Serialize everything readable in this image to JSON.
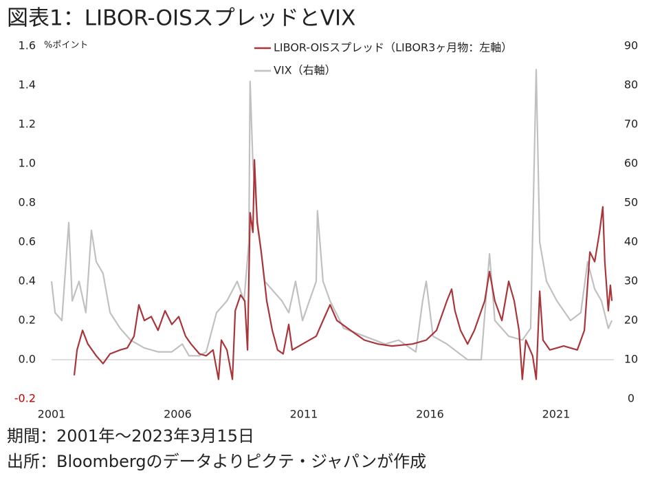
{
  "chart_data": {
    "type": "line",
    "title": "図表1：LIBOR-OISスプレッドとVIX",
    "y_label": "%ポイント",
    "notes": [
      "期間：2001年～2023年3月15日",
      "出所：Bloombergのデータよりピクテ・ジャパンが作成"
    ],
    "xlim": [
      2001,
      2023.29
    ],
    "xticks": [
      2001,
      2006,
      2011,
      2016,
      2021
    ],
    "ylim": [
      -0.2,
      1.6
    ],
    "yticks": [
      -0.2,
      {
        "value": 0,
        "label": "0.0"
      },
      0.2,
      0.4,
      0.6,
      0.8,
      {
        "value": 1,
        "label": "1.0"
      },
      1.2,
      1.4,
      1.6
    ],
    "y2lim": [
      0,
      90
    ],
    "y2ticks": [
      0,
      10,
      20,
      30,
      40,
      50,
      60,
      70,
      80,
      90
    ],
    "series": [
      {
        "name": "VIX（右軸）",
        "color": "#c0c0c0",
        "axis": "y2",
        "x": [
          2001.0,
          2001.14,
          2001.41,
          2001.68,
          2001.82,
          2002.09,
          2002.36,
          2002.58,
          2002.77,
          2003.04,
          2003.32,
          2003.72,
          2004.13,
          2004.68,
          2005.22,
          2005.77,
          2006.18,
          2006.45,
          2006.86,
          2007.13,
          2007.54,
          2007.95,
          2008.36,
          2008.63,
          2008.82,
          2008.87,
          2008.98,
          2009.17,
          2009.45,
          2009.72,
          2010.13,
          2010.4,
          2010.67,
          2010.95,
          2011.49,
          2011.54,
          2011.76,
          2012.04,
          2012.58,
          2013.4,
          2014.22,
          2014.76,
          2015.44,
          2015.71,
          2015.85,
          2016.12,
          2016.67,
          2017.08,
          2017.49,
          2018.03,
          2018.36,
          2018.57,
          2019.12,
          2019.66,
          2019.99,
          2020.21,
          2020.35,
          2020.62,
          2021.03,
          2021.57,
          2021.98,
          2022.25,
          2022.53,
          2022.8,
          2023.07,
          2023.21
        ],
        "values": [
          30,
          22,
          20,
          45,
          25,
          30,
          22,
          43,
          35,
          32,
          22,
          18,
          15,
          13,
          12,
          12,
          14,
          11,
          11,
          12,
          22,
          25,
          30,
          25,
          40,
          81,
          60,
          45,
          30,
          28,
          25,
          22,
          30,
          20,
          30,
          48,
          30,
          25,
          18,
          16,
          14,
          15,
          12,
          25,
          30,
          16,
          14,
          12,
          10,
          10,
          37,
          20,
          16,
          15,
          18,
          84,
          40,
          30,
          25,
          20,
          22,
          35,
          28,
          25,
          18,
          20
        ]
      },
      {
        "name": "LIBOR-OISスプレッド（LIBOR3ヶ月物：左軸）",
        "color": "#a8353a",
        "axis": "y",
        "x": [
          2001.9,
          2002.01,
          2002.23,
          2002.44,
          2002.77,
          2003.04,
          2003.32,
          2003.72,
          2004.0,
          2004.27,
          2004.46,
          2004.68,
          2004.95,
          2005.22,
          2005.5,
          2005.77,
          2006.04,
          2006.31,
          2006.53,
          2006.86,
          2007.13,
          2007.4,
          2007.62,
          2007.73,
          2007.95,
          2008.17,
          2008.28,
          2008.49,
          2008.66,
          2008.77,
          2008.87,
          2008.98,
          2009.04,
          2009.15,
          2009.31,
          2009.53,
          2009.75,
          2009.96,
          2010.18,
          2010.4,
          2010.54,
          2010.95,
          2011.49,
          2011.76,
          2012.04,
          2012.31,
          2012.85,
          2013.4,
          2013.94,
          2014.49,
          2015.31,
          2015.85,
          2016.26,
          2016.67,
          2016.86,
          2016.99,
          2017.21,
          2017.49,
          2017.76,
          2018.17,
          2018.36,
          2018.57,
          2018.85,
          2019.12,
          2019.34,
          2019.53,
          2019.66,
          2019.8,
          2020.07,
          2020.21,
          2020.35,
          2020.48,
          2020.75,
          2021.3,
          2021.84,
          2022.12,
          2022.34,
          2022.53,
          2022.72,
          2022.85,
          2022.93,
          2023.07,
          2023.15,
          2023.21
        ],
        "values": [
          -0.08,
          0.05,
          0.15,
          0.08,
          0.02,
          -0.02,
          0.03,
          0.05,
          0.06,
          0.12,
          0.28,
          0.2,
          0.22,
          0.15,
          0.25,
          0.18,
          0.22,
          0.12,
          0.08,
          0.03,
          0.02,
          0.05,
          -0.1,
          0.1,
          0.05,
          -0.1,
          0.25,
          0.33,
          0.3,
          0.05,
          0.75,
          0.65,
          1.02,
          0.7,
          0.55,
          0.3,
          0.15,
          0.05,
          0.03,
          0.18,
          0.05,
          0.08,
          0.12,
          0.2,
          0.28,
          0.2,
          0.15,
          0.1,
          0.08,
          0.07,
          0.08,
          0.1,
          0.15,
          0.3,
          0.36,
          0.25,
          0.15,
          0.08,
          0.15,
          0.3,
          0.45,
          0.3,
          0.2,
          0.4,
          0.3,
          0.15,
          -0.1,
          0.1,
          0.02,
          -0.1,
          0.35,
          0.1,
          0.05,
          0.07,
          0.05,
          0.15,
          0.55,
          0.5,
          0.65,
          0.78,
          0.5,
          0.25,
          0.38,
          0.3
        ]
      }
    ]
  }
}
